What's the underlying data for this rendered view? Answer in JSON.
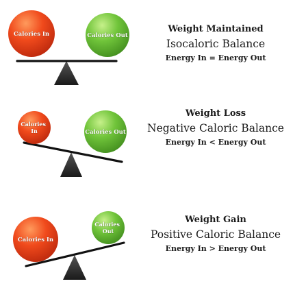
{
  "colors": {
    "calories_in": "#e8401a",
    "calories_out": "#6cc23a",
    "beam": "#111111",
    "fulcrum": "#333333"
  },
  "scales": [
    {
      "state": "Weight Maintained",
      "balance": "Isocaloric Balance",
      "equation": "Energy In = Energy Out",
      "left_ball": {
        "label_lines": [
          "Calories In"
        ],
        "color_key": "calories_in"
      },
      "right_ball": {
        "label_lines": [
          "Calories Out"
        ],
        "color_key": "calories_out"
      },
      "tilt": "level"
    },
    {
      "state": "Weight Loss",
      "balance": "Negative Caloric Balance",
      "equation": "Energy In < Energy Out",
      "left_ball": {
        "label_lines": [
          "Calories",
          "In"
        ],
        "color_key": "calories_in"
      },
      "right_ball": {
        "label_lines": [
          "Calories Out"
        ],
        "color_key": "calories_out"
      },
      "tilt": "right-down"
    },
    {
      "state": "Weight Gain",
      "balance": "Positive Caloric Balance",
      "equation": "Energy In > Energy Out",
      "left_ball": {
        "label_lines": [
          "Calories In"
        ],
        "color_key": "calories_in"
      },
      "right_ball": {
        "label_lines": [
          "Calories",
          "Out"
        ],
        "color_key": "calories_out"
      },
      "tilt": "left-down"
    }
  ]
}
